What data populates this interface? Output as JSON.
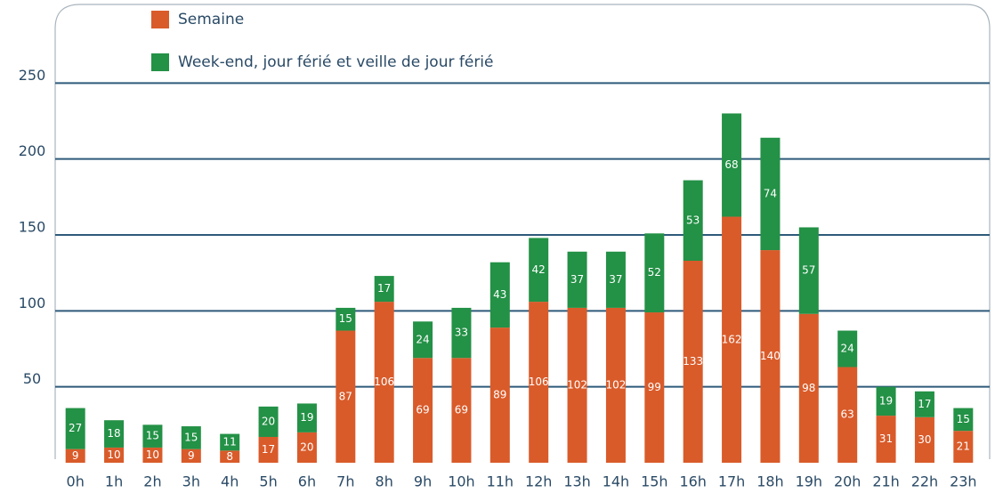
{
  "chart_data": {
    "type": "stacked_bar",
    "categories": [
      "0h",
      "1h",
      "2h",
      "3h",
      "4h",
      "5h",
      "6h",
      "7h",
      "8h",
      "9h",
      "10h",
      "11h",
      "12h",
      "13h",
      "14h",
      "15h",
      "16h",
      "17h",
      "18h",
      "19h",
      "20h",
      "21h",
      "22h",
      "23h"
    ],
    "series": [
      {
        "name": "Semaine",
        "color": "#d95b2a",
        "values": [
          9,
          10,
          10,
          9,
          8,
          17,
          20,
          87,
          106,
          69,
          69,
          89,
          106,
          102,
          102,
          99,
          133,
          162,
          140,
          98,
          63,
          31,
          30,
          21
        ]
      },
      {
        "name": "Week-end, jour férié et veille de jour férié",
        "color": "#239146",
        "values": [
          27,
          18,
          15,
          15,
          11,
          20,
          19,
          15,
          17,
          24,
          33,
          43,
          42,
          37,
          37,
          52,
          53,
          68,
          74,
          57,
          24,
          19,
          17,
          15
        ]
      }
    ],
    "ylim": [
      0,
      300
    ],
    "yticks": [
      50,
      100,
      150,
      200,
      250
    ],
    "grid": true,
    "legend": "top"
  }
}
